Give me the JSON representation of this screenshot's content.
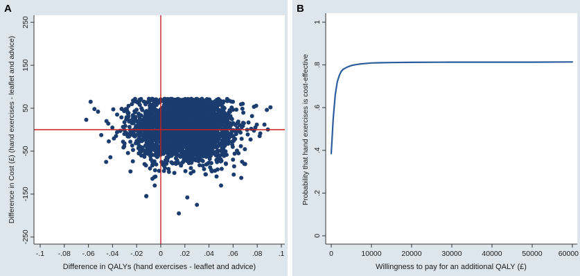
{
  "colors": {
    "panel_bg": "#dce6ec",
    "plot_bg": "#ffffff",
    "marker": "#1a3c6e",
    "curve": "#2b5d9c",
    "reference_line": "#cc1f1f",
    "text": "#1a1a1a"
  },
  "chart_data": [
    {
      "panel_label": "A",
      "type": "scatter",
      "xlabel": "Difference in QALYs (hand exercises - leaflet and advice)",
      "ylabel": "Difference in Cost (£) (hand exercises - leaflet and advice)",
      "xlim": [
        -0.1,
        0.1
      ],
      "ylim": [
        -260,
        260
      ],
      "xticks": [
        -0.1,
        -0.08,
        -0.06,
        -0.04,
        -0.02,
        0,
        0.02,
        0.04,
        0.06,
        0.08,
        0.1
      ],
      "xtick_labels": [
        "-.1",
        "-.08",
        "-.06",
        "-.04",
        "-.02",
        "0",
        ".02",
        ".04",
        ".06",
        ".08",
        ".1"
      ],
      "yticks": [
        250,
        150,
        50,
        -50,
        -150,
        -250
      ],
      "ytick_labels": [
        "250",
        "150",
        "50",
        "-50",
        "-150",
        "-250"
      ],
      "reference_lines": {
        "x": 0,
        "y": 0
      },
      "grid": false,
      "cloud": {
        "count": 3000,
        "x_mean": 0.019,
        "x_sd": 0.02,
        "y_mean": 5,
        "y_sd": 38,
        "y_max": 72
      },
      "outliers": [
        {
          "x": -0.055,
          "y": 48
        },
        {
          "x": -0.052,
          "y": 42
        },
        {
          "x": 0.088,
          "y": 46
        },
        {
          "x": 0.091,
          "y": 52
        },
        {
          "x": 0.086,
          "y": 12
        },
        {
          "x": -0.012,
          "y": -155
        },
        {
          "x": 0.015,
          "y": -195
        },
        {
          "x": 0.03,
          "y": -175
        },
        {
          "x": 0.022,
          "y": -158
        },
        {
          "x": -0.005,
          "y": -130
        },
        {
          "x": 0.05,
          "y": -130
        },
        {
          "x": 0.082,
          "y": -15
        },
        {
          "x": -0.045,
          "y": 20
        },
        {
          "x": 0.07,
          "y": -80
        }
      ]
    },
    {
      "panel_label": "B",
      "type": "line",
      "xlabel": "Willingness to pay for an additional QALY (£)",
      "ylabel": "Probability that hand exercises is cost-effective",
      "xlim": [
        0,
        60000
      ],
      "ylim": [
        0,
        1
      ],
      "xticks": [
        0,
        10000,
        20000,
        30000,
        40000,
        50000,
        60000
      ],
      "xtick_labels": [
        "0",
        "10000",
        "20000",
        "30000",
        "40000",
        "50000",
        "60000"
      ],
      "yticks": [
        0,
        0.2,
        0.4,
        0.6,
        0.8,
        1
      ],
      "ytick_labels": [
        "0",
        ".2",
        ".4",
        ".6",
        ".8",
        "1"
      ],
      "grid": false,
      "series": [
        {
          "x": [
            0,
            500,
            1000,
            1500,
            2000,
            2500,
            3000,
            4000,
            5000,
            6000,
            7000,
            8000,
            10000,
            12000,
            15000,
            20000,
            30000,
            40000,
            50000,
            60000
          ],
          "y": [
            0.385,
            0.55,
            0.66,
            0.72,
            0.75,
            0.77,
            0.78,
            0.79,
            0.797,
            0.801,
            0.804,
            0.806,
            0.809,
            0.81,
            0.811,
            0.812,
            0.813,
            0.813,
            0.813,
            0.814
          ]
        }
      ]
    }
  ]
}
